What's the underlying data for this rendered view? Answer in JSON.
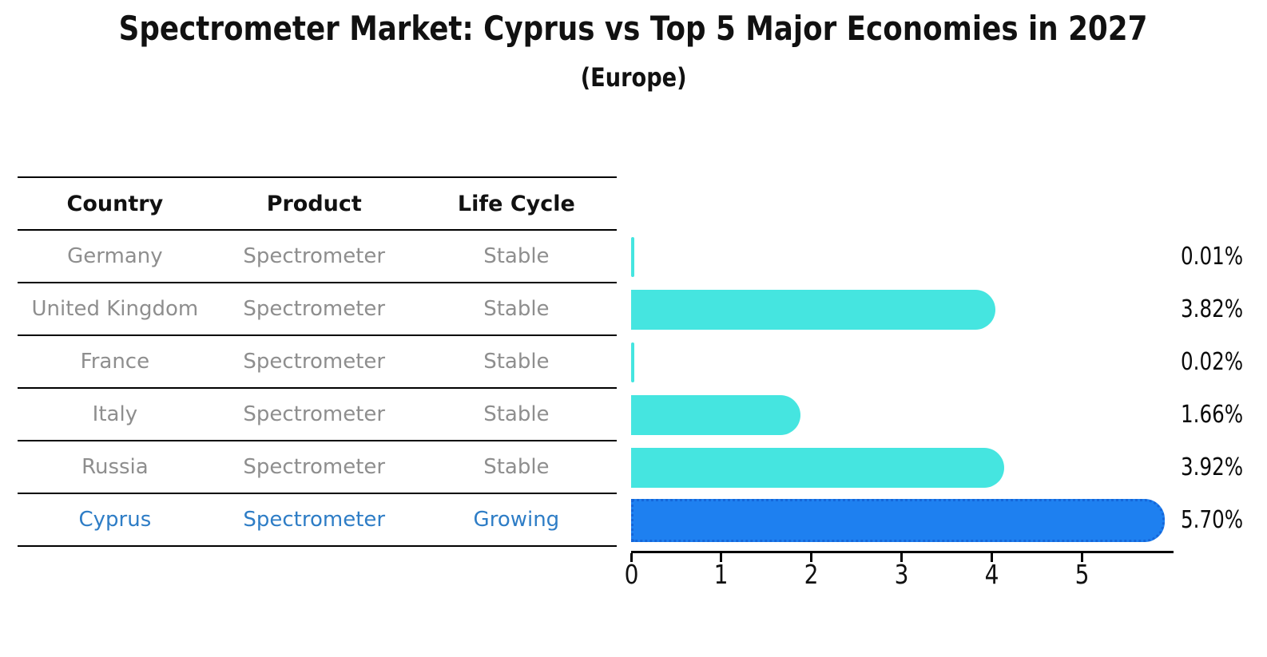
{
  "figure": {
    "title": "Spectrometer Market: Cyprus vs Top 5 Major Economies in 2027",
    "subtitle": "(Europe)"
  },
  "table": {
    "headers": [
      "Country",
      "Product",
      "Life Cycle"
    ],
    "rows": [
      {
        "country": "Germany",
        "product": "Spectrometer",
        "life_cycle": "Stable",
        "highlight": false
      },
      {
        "country": "United Kingdom",
        "product": "Spectrometer",
        "life_cycle": "Stable",
        "highlight": false
      },
      {
        "country": "France",
        "product": "Spectrometer",
        "life_cycle": "Stable",
        "highlight": false
      },
      {
        "country": "Italy",
        "product": "Spectrometer",
        "life_cycle": "Stable",
        "highlight": false
      },
      {
        "country": "Russia",
        "product": "Spectrometer",
        "life_cycle": "Stable",
        "highlight": false
      },
      {
        "country": "Cyprus",
        "product": "Spectrometer",
        "life_cycle": "Growing",
        "highlight": true
      }
    ]
  },
  "chart_data": {
    "type": "bar",
    "orientation": "horizontal",
    "title": "Spectrometer Market: Cyprus vs Top 5 Major Economies in 2027",
    "subtitle": "(Europe)",
    "categories": [
      "Germany",
      "United Kingdom",
      "France",
      "Italy",
      "Russia",
      "Cyprus"
    ],
    "values": [
      0.01,
      3.82,
      0.02,
      1.66,
      3.92,
      5.7
    ],
    "value_labels": [
      "0.01%",
      "3.82%",
      "0.02%",
      "1.66%",
      "3.92%",
      "5.70%"
    ],
    "x_ticks": [
      "0",
      "1",
      "2",
      "3",
      "4",
      "5"
    ],
    "xlim": [
      0,
      6
    ],
    "grid": false,
    "legend": false,
    "highlight_index": 5,
    "unit": "%"
  },
  "colors": {
    "bar": "#45E5E0",
    "highlight_bar": "#1E80F0",
    "highlight_border": "#1566D9",
    "table_text": "#8E8E8E",
    "highlight_text": "#2E7DC6",
    "header_text": "#111111",
    "line": "#000000",
    "value_label_text": "#0A0A0A",
    "tick_text": "#111111"
  }
}
